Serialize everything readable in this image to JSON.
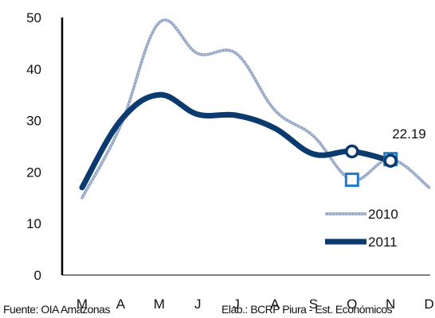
{
  "chart_data": {
    "type": "line",
    "categories": [
      "M",
      "A",
      "M",
      "J",
      "J",
      "A",
      "S",
      "O",
      "N",
      "D"
    ],
    "ylim": [
      0,
      50
    ],
    "yticks": [
      0,
      10,
      20,
      30,
      40,
      50
    ],
    "grid": false,
    "legend_position": "bottom-right",
    "series": [
      {
        "name": "2010",
        "color": "#8fa3c4",
        "values": [
          15,
          29,
          49,
          43,
          43,
          32,
          27,
          18.5,
          22.5,
          17
        ]
      },
      {
        "name": "2011",
        "color": "#0b3a6e",
        "values": [
          17,
          30,
          35,
          31.2,
          31,
          28.5,
          23.5,
          24,
          22.19,
          null
        ]
      }
    ],
    "annotations": [
      {
        "text": "22.19",
        "series": "2011",
        "category": "N"
      }
    ]
  },
  "footer": {
    "source": "Fuente: OIA Amazonas",
    "credit": "Elab.: BCRP Piura - Est. Económicos"
  }
}
